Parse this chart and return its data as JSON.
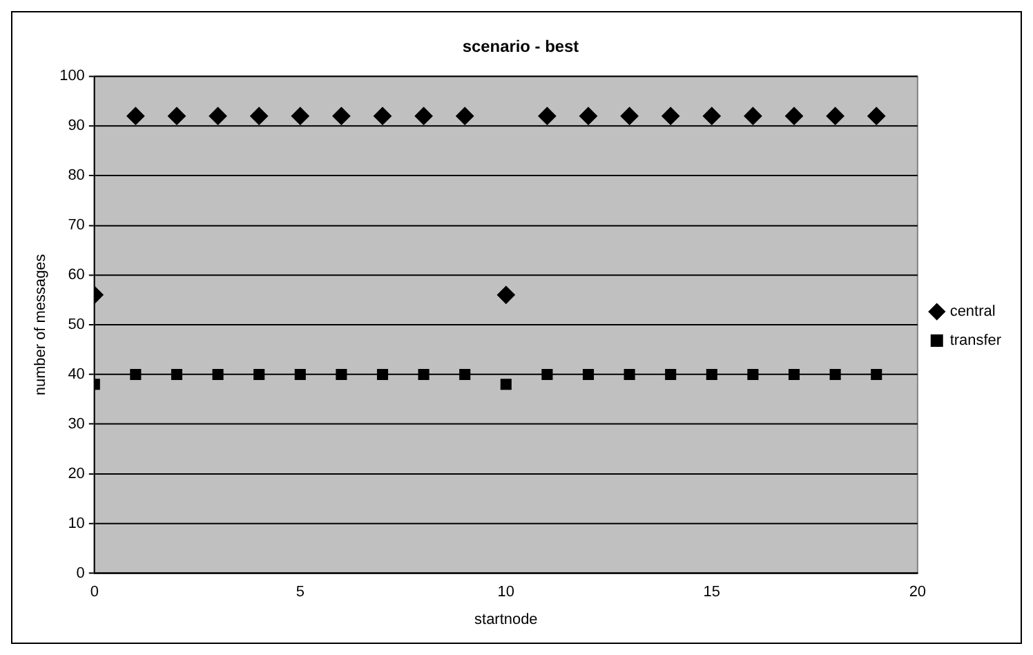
{
  "chart_data": {
    "type": "scatter",
    "title": "scenario - best",
    "xlabel": "startnode",
    "ylabel": "number of messages",
    "x": [
      0,
      1,
      2,
      3,
      4,
      5,
      6,
      7,
      8,
      9,
      10,
      11,
      12,
      13,
      14,
      15,
      16,
      17,
      18,
      19
    ],
    "series": [
      {
        "name": "central",
        "color": "#000000",
        "marker": "diamond",
        "values": [
          56,
          92,
          92,
          92,
          92,
          92,
          92,
          92,
          92,
          92,
          56,
          92,
          92,
          92,
          92,
          92,
          92,
          92,
          92,
          92
        ]
      },
      {
        "name": "transfer",
        "color": "#000000",
        "marker": "square",
        "values": [
          38,
          40,
          40,
          40,
          40,
          40,
          40,
          40,
          40,
          40,
          38,
          40,
          40,
          40,
          40,
          40,
          40,
          40,
          40,
          40
        ]
      }
    ],
    "xlim": [
      0,
      20
    ],
    "xticks": [
      0,
      5,
      10,
      15,
      20
    ],
    "ylim": [
      0,
      100
    ],
    "yticks": [
      0,
      10,
      20,
      30,
      40,
      50,
      60,
      70,
      80,
      90,
      100
    ],
    "grid": "y",
    "legend": "right"
  }
}
